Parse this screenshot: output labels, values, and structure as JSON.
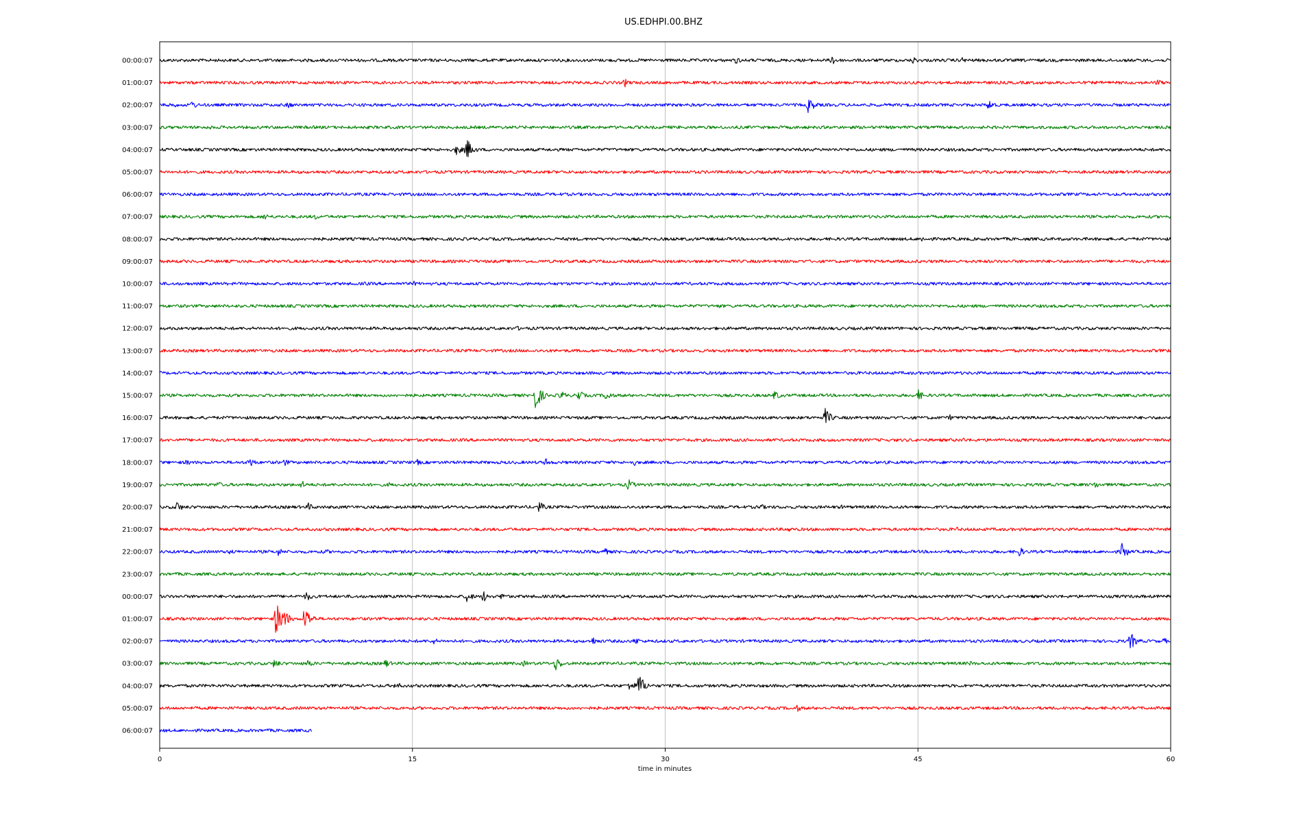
{
  "chart_data": {
    "type": "line",
    "title": "US.EDHPI.00.BHZ",
    "xlabel": "time in minutes",
    "ylabel": "",
    "xlim": [
      0,
      60
    ],
    "x_ticks": [
      "0",
      "15",
      "30",
      "45",
      "60"
    ],
    "x_tick_values": [
      0,
      15,
      30,
      45,
      60
    ],
    "grid": "vertical",
    "colors": [
      "#000000",
      "#ff0000",
      "#0000ff",
      "#008000"
    ],
    "series": [
      {
        "label": "00:00:07",
        "color": "#000000",
        "end": 60,
        "events": [
          {
            "t": 34.2,
            "a": 6
          },
          {
            "t": 39.9,
            "a": 9
          },
          {
            "t": 44.7,
            "a": 6
          },
          {
            "t": 47.6,
            "a": 5
          }
        ]
      },
      {
        "label": "01:00:07",
        "color": "#ff0000",
        "end": 60,
        "events": [
          {
            "t": 27.6,
            "a": 7
          },
          {
            "t": 59.2,
            "a": 6
          }
        ]
      },
      {
        "label": "02:00:07",
        "color": "#0000ff",
        "end": 60,
        "events": [
          {
            "t": 0.7,
            "a": 6
          },
          {
            "t": 1.9,
            "a": 7
          },
          {
            "t": 7.6,
            "a": 6
          },
          {
            "t": 38.5,
            "a": 13
          },
          {
            "t": 49.2,
            "a": 9
          }
        ]
      },
      {
        "label": "03:00:07",
        "color": "#008000",
        "end": 60,
        "events": [
          {
            "t": 2.9,
            "a": 4
          }
        ]
      },
      {
        "label": "04:00:07",
        "color": "#000000",
        "end": 60,
        "events": [
          {
            "t": 17.6,
            "a": 9
          },
          {
            "t": 18.2,
            "a": 18
          }
        ]
      },
      {
        "label": "05:00:07",
        "color": "#ff0000",
        "end": 60,
        "events": []
      },
      {
        "label": "06:00:07",
        "color": "#0000ff",
        "end": 60,
        "events": []
      },
      {
        "label": "07:00:07",
        "color": "#008000",
        "end": 60,
        "events": [
          {
            "t": 6.2,
            "a": 6
          },
          {
            "t": 9.2,
            "a": 5
          }
        ]
      },
      {
        "label": "08:00:07",
        "color": "#000000",
        "end": 60,
        "events": [
          {
            "t": 45.2,
            "a": 5
          }
        ]
      },
      {
        "label": "09:00:07",
        "color": "#ff0000",
        "end": 60,
        "events": []
      },
      {
        "label": "10:00:07",
        "color": "#0000ff",
        "end": 60,
        "events": [
          {
            "t": 12.2,
            "a": 4
          },
          {
            "t": 15.1,
            "a": 4
          }
        ]
      },
      {
        "label": "11:00:07",
        "color": "#008000",
        "end": 60,
        "events": [
          {
            "t": 33.2,
            "a": 4
          }
        ]
      },
      {
        "label": "12:00:07",
        "color": "#000000",
        "end": 60,
        "events": [
          {
            "t": 21.2,
            "a": 4
          }
        ]
      },
      {
        "label": "13:00:07",
        "color": "#ff0000",
        "end": 60,
        "events": []
      },
      {
        "label": "14:00:07",
        "color": "#0000ff",
        "end": 60,
        "events": []
      },
      {
        "label": "15:00:07",
        "color": "#008000",
        "end": 60,
        "events": [
          {
            "t": 22.3,
            "a": 22
          },
          {
            "t": 23.8,
            "a": 8
          },
          {
            "t": 24.8,
            "a": 10
          },
          {
            "t": 26.5,
            "a": 9
          },
          {
            "t": 36.5,
            "a": 8
          },
          {
            "t": 45.0,
            "a": 9
          }
        ]
      },
      {
        "label": "16:00:07",
        "color": "#000000",
        "end": 60,
        "events": [
          {
            "t": 39.5,
            "a": 14
          },
          {
            "t": 46.9,
            "a": 5
          }
        ]
      },
      {
        "label": "17:00:07",
        "color": "#ff0000",
        "end": 60,
        "events": [
          {
            "t": 47.7,
            "a": 4
          }
        ]
      },
      {
        "label": "18:00:07",
        "color": "#0000ff",
        "end": 60,
        "events": [
          {
            "t": 1.6,
            "a": 5
          },
          {
            "t": 5.3,
            "a": 9
          },
          {
            "t": 7.4,
            "a": 6
          },
          {
            "t": 15.3,
            "a": 5
          },
          {
            "t": 22.9,
            "a": 7
          },
          {
            "t": 28.1,
            "a": 6
          }
        ]
      },
      {
        "label": "19:00:07",
        "color": "#008000",
        "end": 60,
        "events": [
          {
            "t": 3.4,
            "a": 6
          },
          {
            "t": 8.4,
            "a": 7
          },
          {
            "t": 13.6,
            "a": 4
          },
          {
            "t": 27.8,
            "a": 9
          },
          {
            "t": 55.5,
            "a": 6
          }
        ]
      },
      {
        "label": "20:00:07",
        "color": "#000000",
        "end": 60,
        "events": [
          {
            "t": 1.0,
            "a": 9
          },
          {
            "t": 8.8,
            "a": 7
          },
          {
            "t": 22.5,
            "a": 9
          },
          {
            "t": 35.6,
            "a": 6
          },
          {
            "t": 40.5,
            "a": 4
          }
        ]
      },
      {
        "label": "21:00:07",
        "color": "#ff0000",
        "end": 60,
        "events": [
          {
            "t": 37.3,
            "a": 5
          },
          {
            "t": 47.3,
            "a": 4
          }
        ]
      },
      {
        "label": "22:00:07",
        "color": "#0000ff",
        "end": 60,
        "events": [
          {
            "t": 4.2,
            "a": 5
          },
          {
            "t": 7.0,
            "a": 7
          },
          {
            "t": 9.8,
            "a": 5
          },
          {
            "t": 26.3,
            "a": 8
          },
          {
            "t": 51.0,
            "a": 8
          },
          {
            "t": 57.1,
            "a": 13
          }
        ]
      },
      {
        "label": "23:00:07",
        "color": "#008000",
        "end": 60,
        "events": []
      },
      {
        "label": "00:00:07",
        "color": "#000000",
        "end": 60,
        "events": [
          {
            "t": 8.7,
            "a": 8
          },
          {
            "t": 18.2,
            "a": 10
          },
          {
            "t": 19.2,
            "a": 9
          },
          {
            "t": 20.3,
            "a": 6
          }
        ]
      },
      {
        "label": "01:00:07",
        "color": "#ff0000",
        "end": 60,
        "events": [
          {
            "t": 6.9,
            "a": 26
          },
          {
            "t": 7.3,
            "a": 18
          },
          {
            "t": 8.6,
            "a": 20
          }
        ]
      },
      {
        "label": "02:00:07",
        "color": "#0000ff",
        "end": 60,
        "events": [
          {
            "t": 16.2,
            "a": 6
          },
          {
            "t": 25.7,
            "a": 7
          },
          {
            "t": 28.2,
            "a": 7
          },
          {
            "t": 57.6,
            "a": 14
          },
          {
            "t": 59.6,
            "a": 5
          }
        ]
      },
      {
        "label": "03:00:07",
        "color": "#008000",
        "end": 60,
        "events": [
          {
            "t": 6.8,
            "a": 8
          },
          {
            "t": 8.8,
            "a": 7
          },
          {
            "t": 13.4,
            "a": 7
          },
          {
            "t": 21.6,
            "a": 5
          },
          {
            "t": 23.5,
            "a": 12
          },
          {
            "t": 48.1,
            "a": 4
          }
        ]
      },
      {
        "label": "04:00:07",
        "color": "#000000",
        "end": 60,
        "events": [
          {
            "t": 14.0,
            "a": 7
          },
          {
            "t": 27.9,
            "a": 9
          },
          {
            "t": 28.4,
            "a": 20
          }
        ]
      },
      {
        "label": "05:00:07",
        "color": "#ff0000",
        "end": 60,
        "events": [
          {
            "t": 37.8,
            "a": 6
          }
        ]
      },
      {
        "label": "06:00:07",
        "color": "#0000ff",
        "end": 9.05,
        "events": []
      }
    ]
  }
}
